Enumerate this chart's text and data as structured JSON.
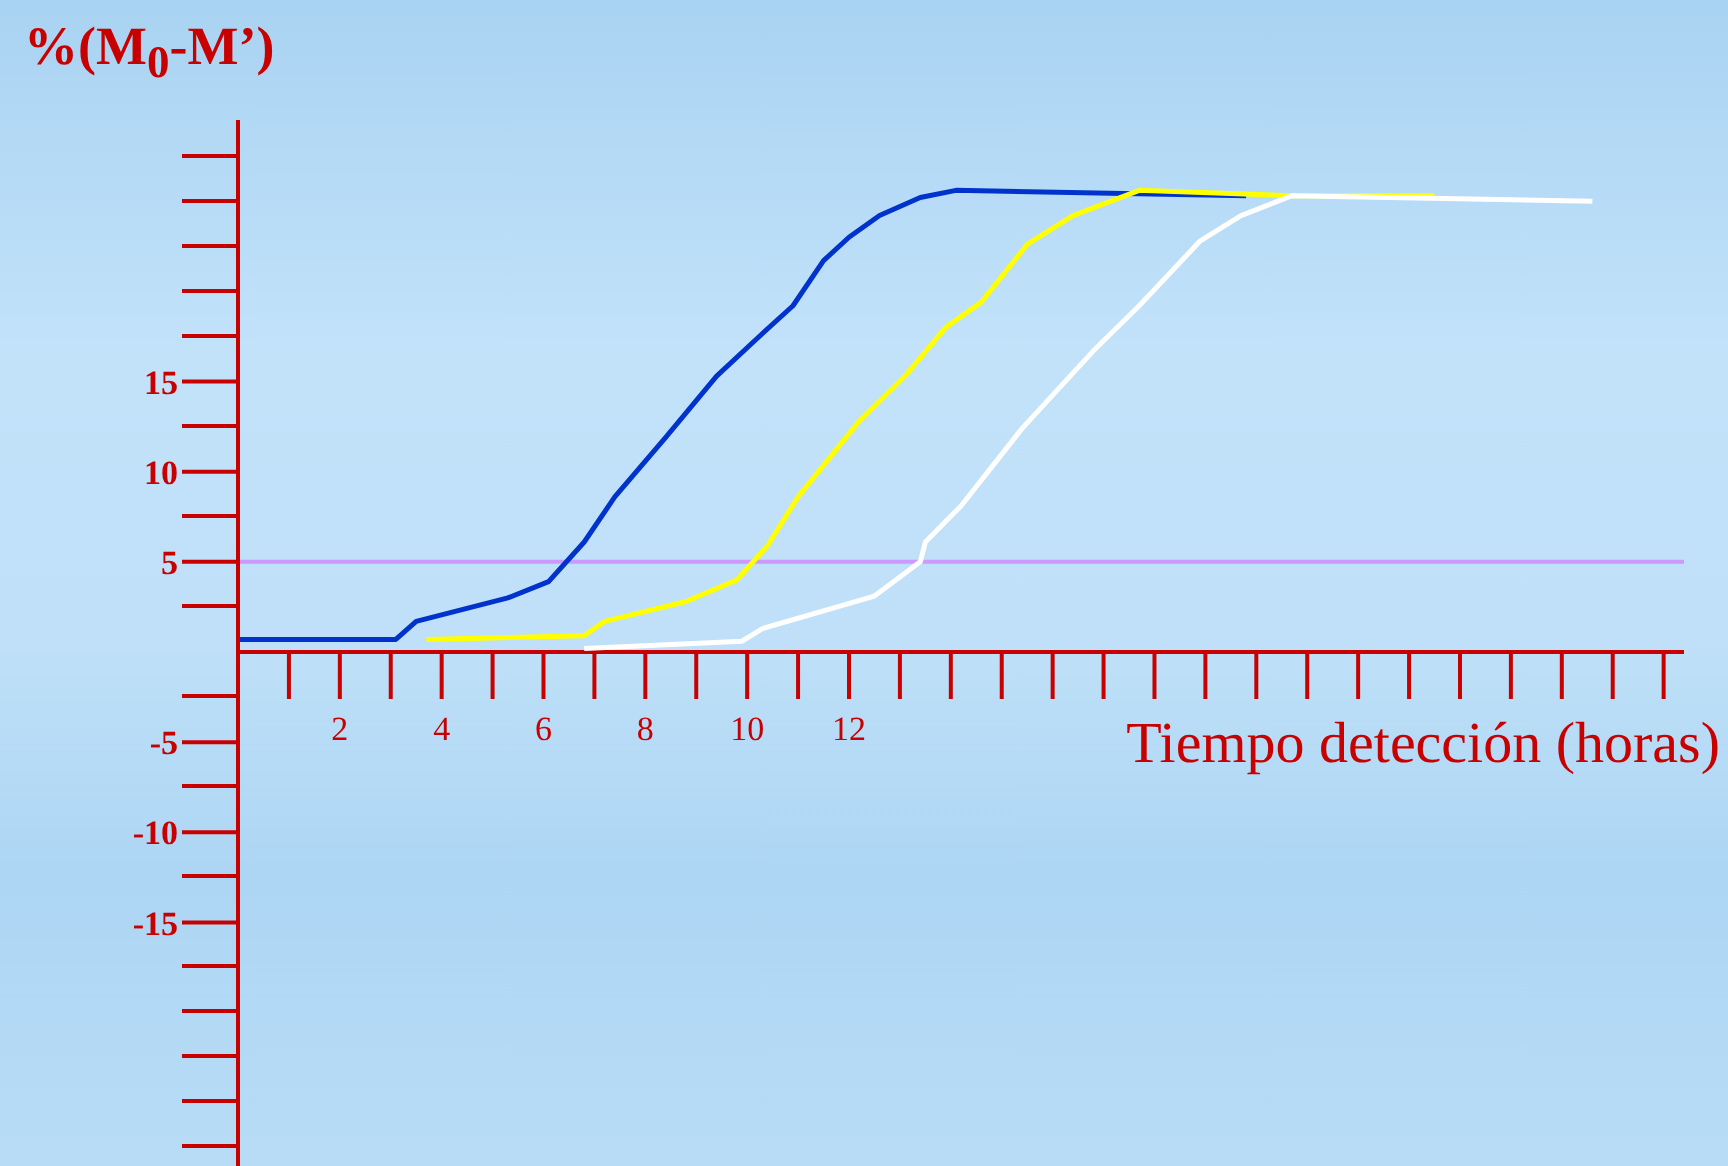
{
  "chart_data": {
    "type": "line",
    "ylabel": "%(M$_{0}$-M’)",
    "xlabel": "Tiempo detección (horas)",
    "xlim": [
      0,
      28.4
    ],
    "ylim": [
      -28.5,
      29.5
    ],
    "xticks": [
      2,
      4,
      6,
      8,
      10,
      12
    ],
    "yticks": [
      -15,
      -10,
      -5,
      5,
      10,
      15
    ],
    "grid": false,
    "legend": false,
    "marker": "none",
    "line_style": "solid",
    "ref_lines": [
      {
        "axis": "y",
        "value": 5,
        "color": "#cc99ff"
      }
    ],
    "series": [
      {
        "color": "#0033cc",
        "x": [
          0,
          3.1,
          3.5,
          5.3,
          6.1,
          6.8,
          7.4,
          8.4,
          9.4,
          10.2,
          10.9,
          11.5,
          12.0,
          12.6,
          13.4,
          14.1,
          19.8
        ],
        "values": [
          0.7,
          0.7,
          1.7,
          3.0,
          3.9,
          6.1,
          8.6,
          11.9,
          15.3,
          17.4,
          19.2,
          21.7,
          23.0,
          24.2,
          25.2,
          25.6,
          25.3
        ]
      },
      {
        "color": "#ffff00",
        "x": [
          3.7,
          6.8,
          7.2,
          8.8,
          9.8,
          10.4,
          11.0,
          12.2,
          13.1,
          13.9,
          14.6,
          15.5,
          16.4,
          17.7,
          20.7,
          23.5
        ],
        "values": [
          0.7,
          0.9,
          1.7,
          2.8,
          4.0,
          5.9,
          8.6,
          12.8,
          15.3,
          18.0,
          19.4,
          22.6,
          24.2,
          25.6,
          25.3,
          25.3
        ]
      },
      {
        "color": "#ffffff",
        "x": [
          6.8,
          9.9,
          10.3,
          12.5,
          13.4,
          13.5,
          14.2,
          15.4,
          16.8,
          17.7,
          18.9,
          19.7,
          20.7,
          26.6
        ],
        "values": [
          0.2,
          0.6,
          1.3,
          3.1,
          5.0,
          6.1,
          8.1,
          12.4,
          16.7,
          19.2,
          22.8,
          24.2,
          25.3,
          25.0
        ]
      }
    ]
  }
}
